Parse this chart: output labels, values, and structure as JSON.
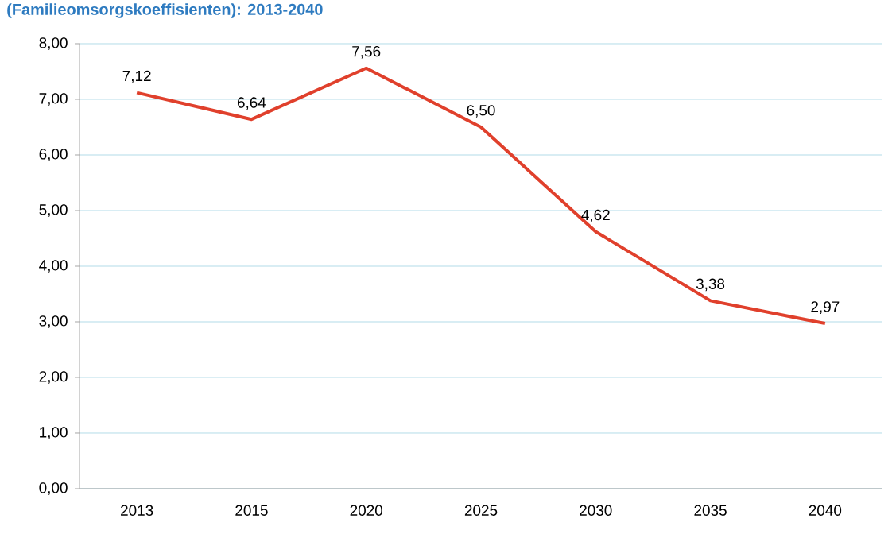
{
  "chart_data": {
    "type": "line",
    "title": "(Familieomsorgskoeffisienten): 2013-2040",
    "categories": [
      "2013",
      "2015",
      "2020",
      "2025",
      "2030",
      "2035",
      "2040"
    ],
    "values": [
      7.12,
      6.64,
      7.56,
      6.5,
      4.62,
      3.38,
      2.97
    ],
    "value_labels": [
      "7,12",
      "6,64",
      "7,56",
      "6,50",
      "4,62",
      "3,38",
      "2,97"
    ],
    "color": "#e0402c",
    "ylim": [
      0,
      8
    ],
    "yticks": [
      {
        "value": 0,
        "label": "0,00"
      },
      {
        "value": 1,
        "label": "1,00"
      },
      {
        "value": 2,
        "label": "2,00"
      },
      {
        "value": 3,
        "label": "3,00"
      },
      {
        "value": 4,
        "label": "4,00"
      },
      {
        "value": 5,
        "label": "5,00"
      },
      {
        "value": 6,
        "label": "6,00"
      },
      {
        "value": 7,
        "label": "7,00"
      },
      {
        "value": 8,
        "label": "8,00"
      }
    ],
    "grid": "y",
    "marker": "none",
    "line_style": "solid"
  }
}
